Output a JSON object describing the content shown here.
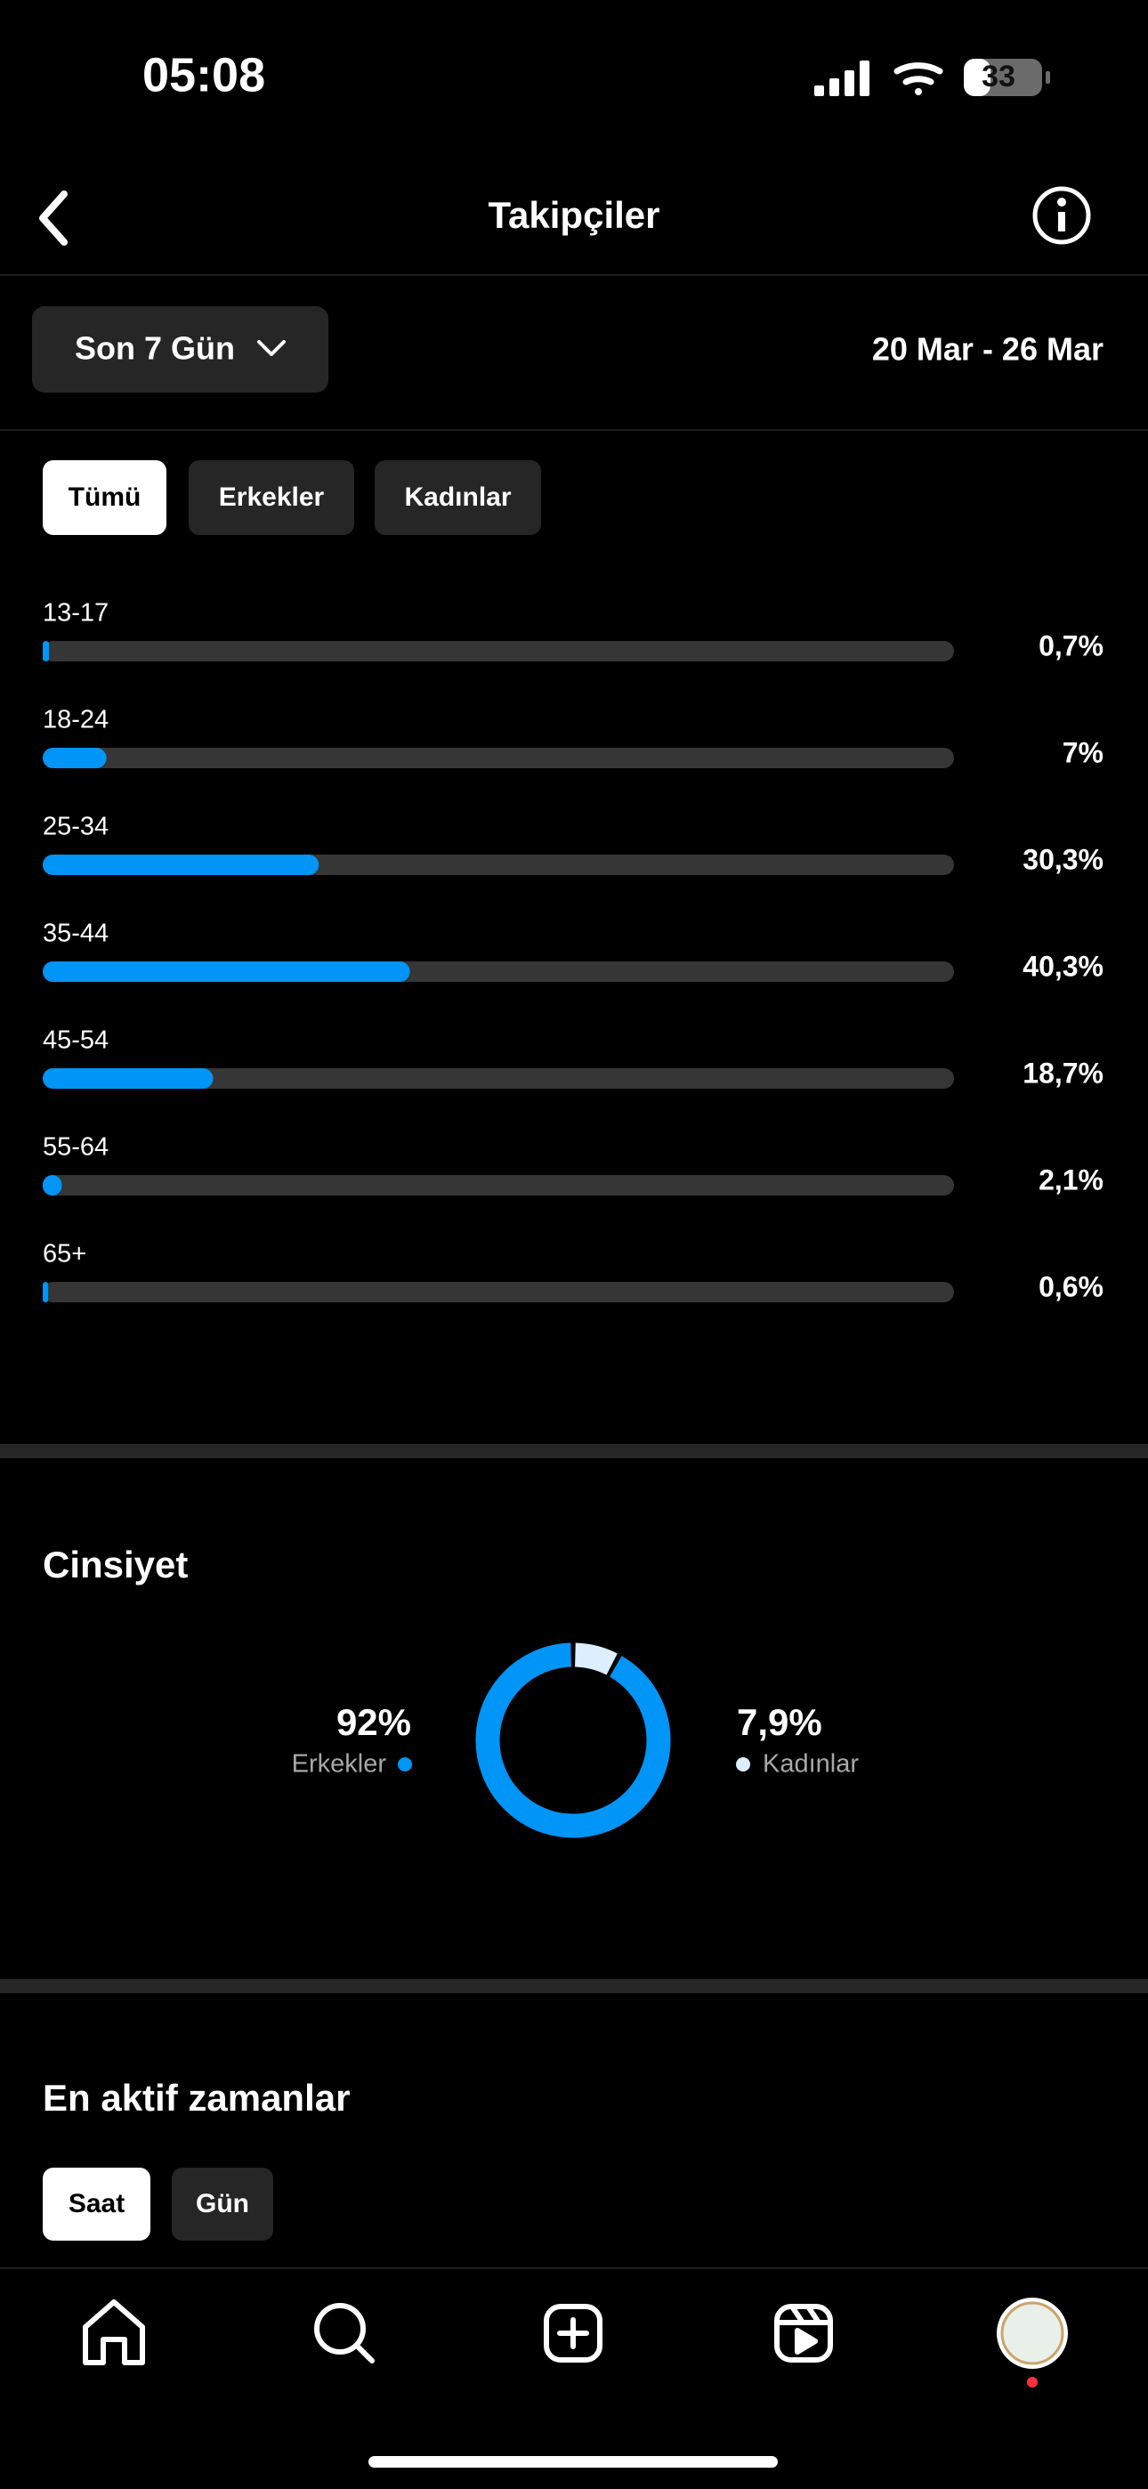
{
  "status_bar": {
    "time": "05:08",
    "battery": "33"
  },
  "header": {
    "title": "Takipçiler"
  },
  "filter": {
    "period": "Son 7 Gün",
    "date_range": "20 Mar - 26 Mar"
  },
  "age_tabs": [
    "Tümü",
    "Erkekler",
    "Kadınlar"
  ],
  "chart_data": [
    {
      "type": "bar",
      "orientation": "horizontal",
      "categories": [
        "13-17",
        "18-24",
        "25-34",
        "35-44",
        "45-54",
        "55-64",
        "65+"
      ],
      "values": [
        0.7,
        7,
        30.3,
        40.3,
        18.7,
        2.1,
        0.6
      ],
      "value_labels": [
        "0,7%",
        "7%",
        "30,3%",
        "40,3%",
        "18,7%",
        "2,1%",
        "0,6%"
      ],
      "xlim": [
        0,
        100
      ],
      "color": "#0095f6"
    },
    {
      "type": "pie",
      "title": "Cinsiyet",
      "categories": [
        "Erkekler",
        "Kadınlar"
      ],
      "values": [
        92,
        7.9
      ],
      "value_labels": [
        "92%",
        "7,9%"
      ],
      "colors": [
        "#0095f6",
        "#dceeff"
      ]
    }
  ],
  "active_times": {
    "title": "En aktif zamanlar",
    "tabs": [
      "Saat",
      "Gün"
    ]
  }
}
